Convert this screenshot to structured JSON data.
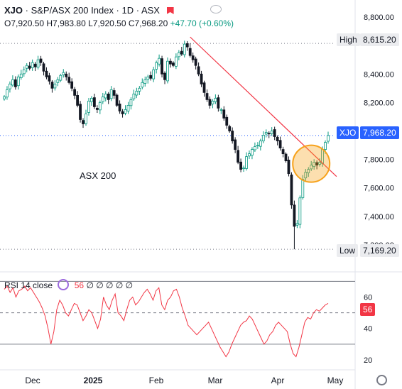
{
  "header": {
    "symbol": "XJO",
    "title": "S&P/ASX 200 Index · 1D · ASX",
    "open": "O7,920.50",
    "high": "H7,983.80",
    "low": "L7,920.50",
    "close": "C7,968.20",
    "change": "+47.70 (+0.60%)"
  },
  "annotation": "ASX 200",
  "price_axis": {
    "ticks": [
      "8,800.00",
      "8,400.00",
      "8,200.00",
      "8,000.00",
      "7,800.00",
      "7,600.00",
      "7,400.00",
      "7,200.00"
    ],
    "high_label": "High",
    "high_value": "8,615.20",
    "low_label": "Low",
    "low_value": "7,169.20",
    "last_symbol": "XJO",
    "last_value": "7,968.20"
  },
  "rsi": {
    "label": "RSI 14 close",
    "value": "56",
    "extras": [
      "∅",
      "∅",
      "∅",
      "∅",
      "∅"
    ],
    "ticks": [
      "60",
      "40",
      "20"
    ],
    "badge": "56"
  },
  "time_axis": [
    "Dec",
    "2025",
    "Feb",
    "Mar",
    "Apr",
    "May"
  ],
  "colors": {
    "up": "#089981",
    "down": "#131722",
    "trendline": "#f23645",
    "rsi_line": "#f23645",
    "highlight": "#f7a21b",
    "last_price_tag": "#2962ff"
  },
  "chart_data": {
    "type": "candlestick",
    "title": "S&P/ASX 200 Index · 1D · ASX",
    "ylim": [
      7150,
      8870
    ],
    "yticks": [
      8800,
      8400,
      8200,
      8000,
      7800,
      7600,
      7400,
      7200
    ],
    "xticks": [
      "Dec",
      "2025",
      "Feb",
      "Mar",
      "Apr",
      "May"
    ],
    "high": 8615.2,
    "low": 7169.2,
    "last": 7968.2,
    "closes": [
      8240,
      8290,
      8330,
      8360,
      8310,
      8380,
      8400,
      8430,
      8460,
      8440,
      8480,
      8450,
      8500,
      8480,
      8420,
      8380,
      8350,
      8300,
      8330,
      8360,
      8390,
      8410,
      8380,
      8340,
      8300,
      8250,
      8180,
      8080,
      8050,
      8120,
      8210,
      8230,
      8170,
      8150,
      8200,
      8240,
      8260,
      8220,
      8290,
      8250,
      8180,
      8140,
      8120,
      8150,
      8180,
      8220,
      8260,
      8280,
      8300,
      8340,
      8360,
      8380,
      8370,
      8430,
      8480,
      8510,
      8400,
      8360,
      8490,
      8470,
      8460,
      8520,
      8550,
      8540,
      8610,
      8590,
      8530,
      8500,
      8460,
      8400,
      8330,
      8270,
      8220,
      8180,
      8210,
      8230,
      8160,
      8150,
      8090,
      8040,
      8000,
      7930,
      7870,
      7780,
      7730,
      7740,
      7820,
      7840,
      7870,
      7890,
      7900,
      7930,
      7970,
      7990,
      7980,
      8000,
      7960,
      7930,
      7880,
      7840,
      7790,
      7700,
      7480,
      7330,
      7350,
      7530,
      7660,
      7710,
      7730,
      7760,
      7780,
      7760,
      7780,
      7870,
      7920,
      7968
    ],
    "trendline": [
      {
        "i": 66,
        "v": 8660
      },
      {
        "i": 118,
        "v": 7680
      }
    ],
    "rsi": {
      "values": [
        65,
        67,
        63,
        66,
        60,
        64,
        65,
        67,
        64,
        66,
        63,
        60,
        57,
        53,
        48,
        40,
        30,
        38,
        52,
        58,
        55,
        50,
        48,
        52,
        56,
        55,
        50,
        45,
        48,
        52,
        50,
        45,
        40,
        46,
        60,
        55,
        52,
        58,
        62,
        50,
        48,
        45,
        52,
        58,
        60,
        55,
        57,
        60,
        63,
        65,
        62,
        58,
        64,
        66,
        55,
        52,
        58,
        60,
        64,
        65,
        60,
        53,
        48,
        42,
        40,
        38,
        36,
        38,
        40,
        42,
        44,
        40,
        36,
        32,
        28,
        25,
        22,
        25,
        30,
        34,
        38,
        42,
        44,
        45,
        48,
        46,
        42,
        38,
        34,
        30,
        32,
        36,
        38,
        42,
        44,
        42,
        40,
        38,
        30,
        24,
        22,
        28,
        36,
        44,
        47,
        46,
        50,
        52,
        51,
        53,
        55,
        56
      ],
      "ylim": [
        15,
        72
      ],
      "ticks": [
        60,
        40,
        20
      ],
      "bands": [
        70,
        30
      ],
      "midline": 50,
      "last": 56
    }
  }
}
